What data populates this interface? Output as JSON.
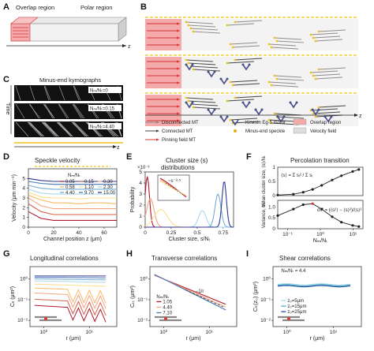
{
  "panels": {
    "A": {
      "label": "A",
      "overlap": "Overlap region",
      "polar": "Polar region",
      "axis_z": "z"
    },
    "B": {
      "label": "B",
      "axis_z": "z"
    },
    "C": {
      "label": "C",
      "title": "Minus-end kymographs",
      "time": "Time",
      "kymos": [
        {
          "label": "Nₘ/Nₜ=0"
        },
        {
          "label": "Nₘ/Nₜ=0.15"
        },
        {
          "label": "Nₘ/Nₜ=4.40"
        }
      ],
      "axis_z": "z"
    },
    "D": {
      "label": "D",
      "title": "Speckle velocity"
    },
    "E": {
      "label": "E",
      "title": "Cluster size (s)",
      "title2": "distributions",
      "exp": "×10⁻³"
    },
    "F": {
      "label": "F",
      "title": "Percolation transition",
      "formula_top": "⟨s⟩ = Σ sᵢ² / Σ sᵢ",
      "formula_bot": "σₛ² = (⟨s²⟩ − ⟨s⟩²)/⟨s⟩²"
    },
    "G": {
      "label": "G",
      "title": "Longitudinal correlations"
    },
    "H": {
      "label": "H",
      "title": "Transverse correlations",
      "slope": "−1/r"
    },
    "I": {
      "label": "I",
      "title": "Shear correlations",
      "annot": "Nₘ/Nₜ = 4.4"
    }
  },
  "legend_b": {
    "items": [
      {
        "text": "Disconnected MT",
        "kind": "line",
        "color": "#8c8c8c"
      },
      {
        "text": "Connected MT",
        "kind": "line",
        "color": "#444444"
      },
      {
        "text": "Pinning field MT",
        "kind": "line",
        "color": "#d6383a"
      },
      {
        "text": "Kinesin Eg-5 motor",
        "kind": "motor",
        "color": "#4a4f8c"
      },
      {
        "text": "Minus-end speckle",
        "kind": "dot",
        "color": "#e2b424"
      },
      {
        "text": "Overlap region",
        "kind": "box",
        "color": "#f4a9aa"
      },
      {
        "text": "Velocity field",
        "kind": "box",
        "color": "#dddddd"
      }
    ]
  },
  "colors": {
    "overlap": "#f4a9aa",
    "pin": "#d6383a",
    "yellow": "#f0c21a",
    "motor": "#4a4f8c",
    "mt_gray": "#8c8c8c"
  },
  "chart_data": [
    {
      "id": "D",
      "type": "line",
      "title": "Speckle velocity",
      "xlabel": "Channel position z (μm)",
      "ylabel": "Velocity (μm min⁻¹)",
      "xlim": [
        0,
        70
      ],
      "ylim": [
        0,
        6
      ],
      "xticks": [
        "0",
        "20",
        "40",
        "60"
      ],
      "yticks": [
        "0",
        "1",
        "2",
        "3",
        "4",
        "5"
      ],
      "legend_title": "Nₘ/Nₜ",
      "legend": [
        "0.05",
        "0.15",
        "0.30",
        "0.58",
        "1.10",
        "2.30",
        "4.40",
        "9.70",
        "15.00"
      ],
      "series": [
        {
          "name": "0.05",
          "color": "#b2182b",
          "values": [
            1.6,
            0.9,
            0.7,
            0.7,
            0.7,
            0.7,
            0.7,
            0.7
          ]
        },
        {
          "name": "0.15",
          "color": "#d6604d",
          "values": [
            2.4,
            1.6,
            1.3,
            1.3,
            1.3,
            1.3,
            1.3,
            1.3
          ]
        },
        {
          "name": "0.30",
          "color": "#f4a582",
          "values": [
            3.0,
            2.2,
            1.9,
            1.9,
            1.9,
            1.9,
            1.9,
            1.9
          ]
        },
        {
          "name": "0.58",
          "color": "#fdb863",
          "values": [
            3.3,
            2.8,
            2.5,
            2.5,
            2.4,
            2.5,
            2.5,
            2.4
          ]
        },
        {
          "name": "1.10",
          "color": "#fee08b",
          "values": [
            3.6,
            3.1,
            3.0,
            3.0,
            2.9,
            3.0,
            3.0,
            3.0
          ]
        },
        {
          "name": "2.30",
          "color": "#abd9e9",
          "values": [
            3.9,
            3.5,
            3.4,
            3.4,
            3.4,
            3.4,
            3.4,
            3.4
          ]
        },
        {
          "name": "4.40",
          "color": "#74add1",
          "values": [
            4.3,
            4.0,
            3.9,
            3.9,
            3.9,
            3.9,
            3.9,
            3.9
          ]
        },
        {
          "name": "9.70",
          "color": "#4575b4",
          "values": [
            4.7,
            4.5,
            4.4,
            4.4,
            4.4,
            4.4,
            4.4,
            4.4
          ]
        },
        {
          "name": "15.00",
          "color": "#313695",
          "values": [
            5.0,
            4.8,
            4.7,
            4.7,
            4.7,
            4.7,
            4.7,
            4.7
          ]
        }
      ],
      "x": [
        0,
        10,
        20,
        30,
        40,
        50,
        60,
        70
      ]
    },
    {
      "id": "E",
      "type": "line",
      "title": "Cluster size (s) distributions",
      "xlabel": "Cluster size, s/Nₜ",
      "ylabel": "Probability",
      "xlim": [
        0,
        0.85
      ],
      "ylim": [
        0,
        5
      ],
      "xticks": [
        "0",
        "0.25",
        "0.5",
        "0.75"
      ],
      "yticks": [
        "0",
        "1",
        "2",
        "3",
        "4",
        "5"
      ],
      "inset_label": "~s⁻²⋅⁵",
      "series": [
        {
          "color": "#b2182b",
          "peak": 0.02,
          "height": 4.6,
          "width": 0.03
        },
        {
          "color": "#f4a582",
          "peak": 0.05,
          "height": 2.6,
          "width": 0.05
        },
        {
          "color": "#fee08b",
          "peak": 0.15,
          "height": 1.6,
          "width": 0.09
        },
        {
          "color": "#abd9e9",
          "peak": 0.55,
          "height": 1.5,
          "width": 0.05
        },
        {
          "color": "#74add1",
          "peak": 0.7,
          "height": 3.0,
          "width": 0.04
        },
        {
          "color": "#313695",
          "peak": 0.76,
          "height": 4.2,
          "width": 0.03
        }
      ]
    },
    {
      "id": "F_top",
      "type": "line",
      "ylabel": "Mean cluster size, ⟨s⟩/Nₜ",
      "xscale": "log",
      "xlim": [
        0.05,
        20
      ],
      "ylim": [
        0,
        1
      ],
      "yticks": [
        "0",
        "0.5",
        "1"
      ],
      "x": [
        0.05,
        0.15,
        0.3,
        0.58,
        1.1,
        2.3,
        4.4,
        9.7,
        15
      ],
      "values": [
        0.02,
        0.05,
        0.12,
        0.22,
        0.36,
        0.55,
        0.7,
        0.85,
        0.92
      ]
    },
    {
      "id": "F_bottom",
      "type": "line",
      "xlabel": "Nₘ/Nₜ",
      "ylabel": "Variance, σₛ²",
      "xscale": "log",
      "xlim": [
        0.05,
        20
      ],
      "ylim": [
        0,
        1.3
      ],
      "xticks": [
        "10⁻¹",
        "10⁰",
        "10¹"
      ],
      "yticks": [
        "0",
        "0.5",
        "1.0"
      ],
      "x": [
        0.05,
        0.15,
        0.3,
        0.58,
        1.1,
        2.3,
        4.4,
        9.7,
        15
      ],
      "values": [
        0.6,
        0.9,
        1.1,
        1.15,
        0.9,
        0.55,
        0.3,
        0.15,
        0.1
      ]
    },
    {
      "id": "G",
      "type": "line",
      "title": "Longitudinal correlations",
      "xlabel": "r (μm)",
      "ylabel": "Cₗₗ (μm²)",
      "xscale": "log",
      "yscale": "log",
      "xticks": [
        "10⁰",
        "10¹"
      ],
      "yticks": [
        "10⁻²",
        "10⁻¹",
        "10⁰"
      ],
      "series": [
        {
          "color": "#313695",
          "level": 1.4
        },
        {
          "color": "#4575b4",
          "level": 1.2
        },
        {
          "color": "#74add1",
          "level": 1.0
        },
        {
          "color": "#abd9e9",
          "level": 0.8
        },
        {
          "color": "#fee08b",
          "level": 0.55
        },
        {
          "color": "#fdb863",
          "level": 0.35
        },
        {
          "color": "#f4a582",
          "level": 0.2
        },
        {
          "color": "#d6604d",
          "level": 0.1
        },
        {
          "color": "#b2182b",
          "level": 0.05
        }
      ]
    },
    {
      "id": "H",
      "type": "line",
      "title": "Transverse correlations",
      "xlabel": "r (μm)",
      "ylabel": "Cₜₜ (μm²)",
      "xscale": "log",
      "yscale": "log",
      "xticks": [
        "10⁰",
        "10¹"
      ],
      "yticks": [
        "10⁻²",
        "10⁻¹",
        "10⁰"
      ],
      "legend_title": "Nₘ/Nₜ",
      "series": [
        {
          "name": "1.05",
          "color": "#b2182b",
          "start": 1.0
        },
        {
          "name": "4.40",
          "color": "#f4a582",
          "start": 1.0
        },
        {
          "name": "7.10",
          "color": "#4575b4",
          "start": 1.0
        }
      ]
    },
    {
      "id": "I",
      "type": "line",
      "title": "Shear correlations",
      "xlabel": "r (μm)",
      "ylabel": "Cₗₜ(z₀) (μm²)",
      "xscale": "log",
      "yscale": "log",
      "xticks": [
        "10⁰",
        "10¹"
      ],
      "yticks": [
        "10⁻²",
        "10⁻¹",
        "10⁰"
      ],
      "series": [
        {
          "name": "z₀=5μm",
          "color": "#a6dbe8",
          "level": 0.55
        },
        {
          "name": "z₀=15μm",
          "color": "#4fa9c8",
          "level": 0.5
        },
        {
          "name": "z₀=25μm",
          "color": "#1f4e99",
          "level": 0.45
        }
      ]
    }
  ]
}
